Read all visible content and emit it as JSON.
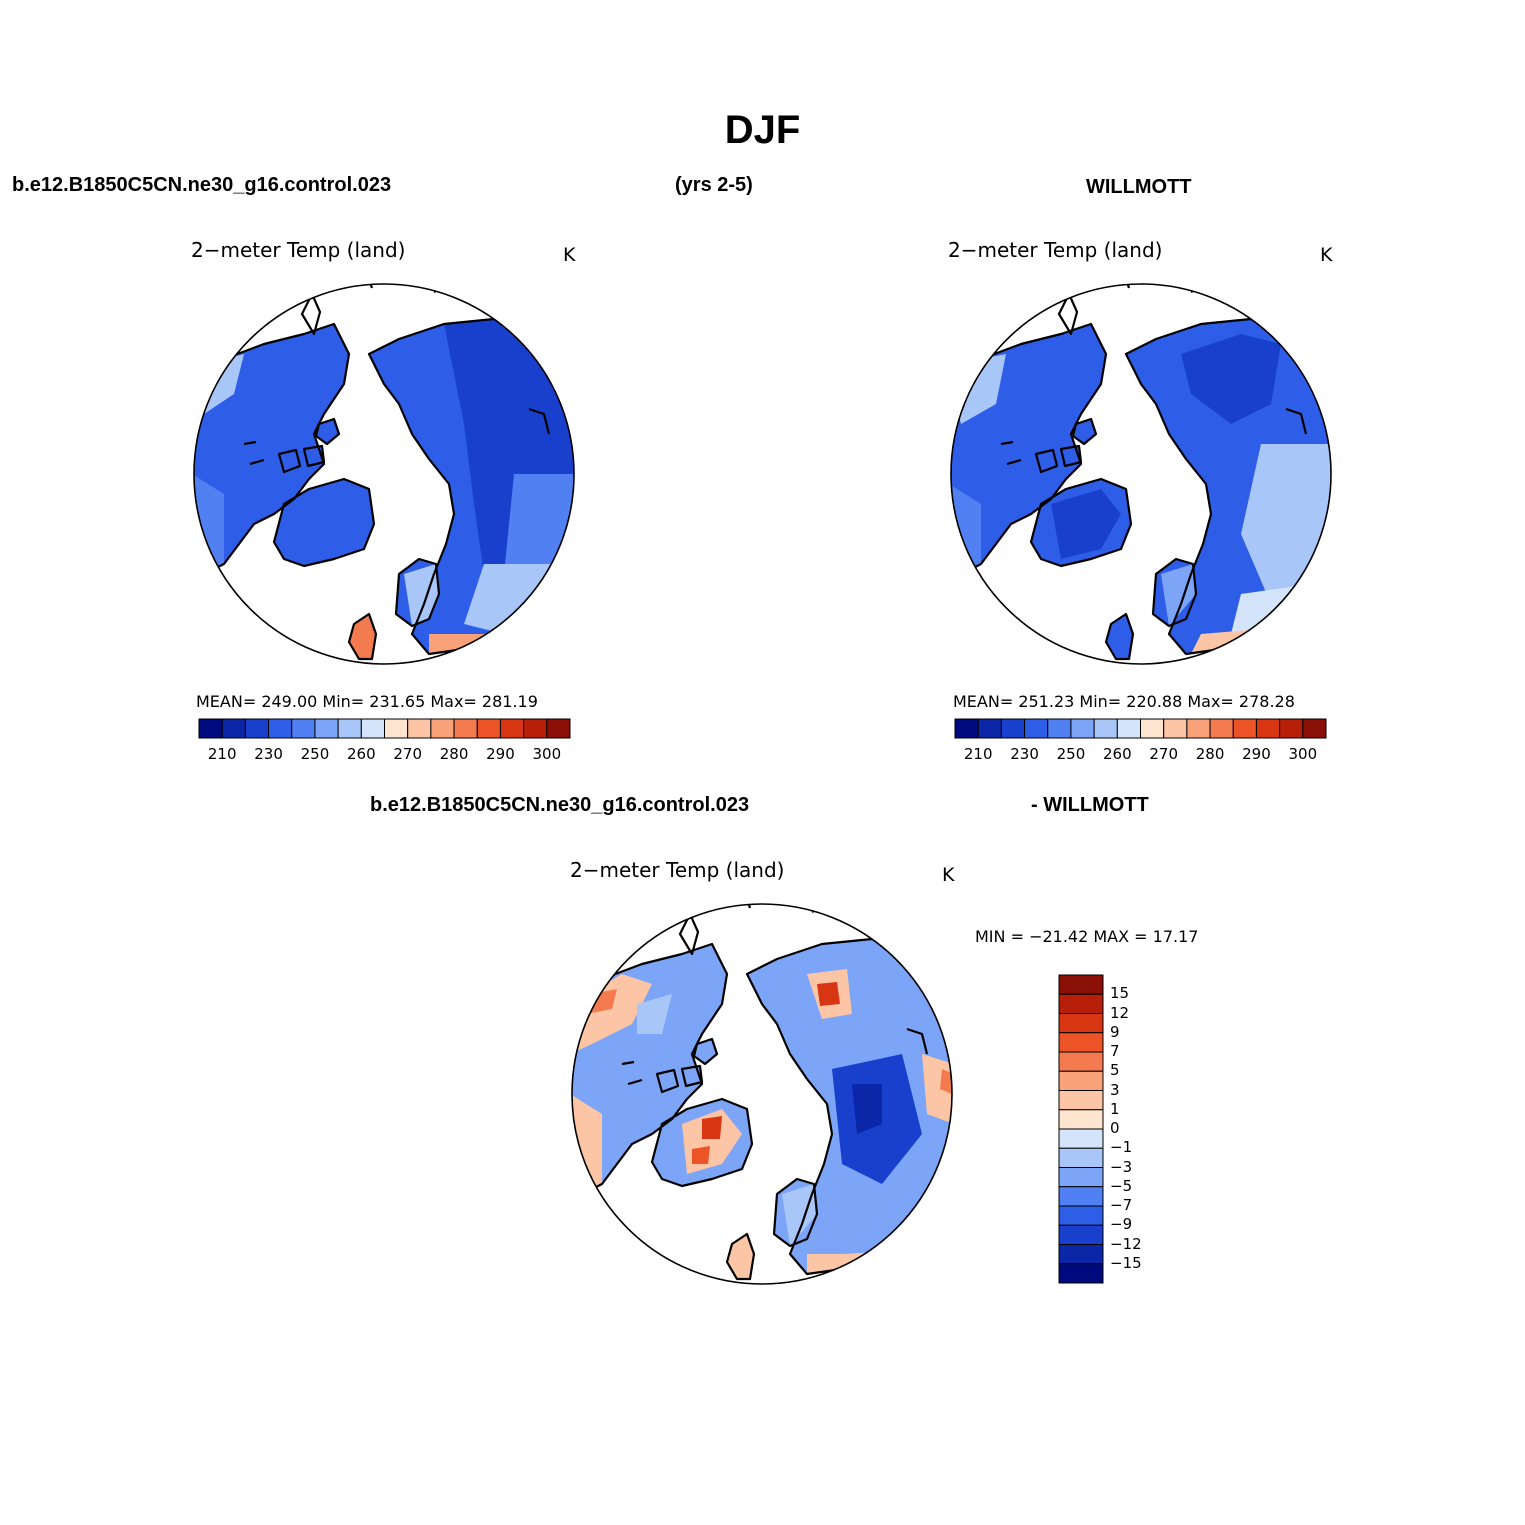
{
  "figure": {
    "title": "DJF",
    "case_name": "b.e12.B1850C5CN.ne30_g16.control.023",
    "years": "(yrs 2-5)",
    "obs_name": "WILLMOTT",
    "diff_case_name": "b.e12.B1850C5CN.ne30_g16.control.023",
    "diff_obs_name": "- WILLMOTT"
  },
  "panels": {
    "model": {
      "title": "2−meter Temp (land)",
      "units": "K",
      "stats": "MEAN= 249.00   Min= 231.65   Max= 281.19"
    },
    "obs": {
      "title": "2−meter Temp (land)",
      "units": "K",
      "stats": "MEAN= 251.23   Min= 220.88   Max= 278.28"
    },
    "diff": {
      "title": "2−meter Temp (land)",
      "units": "K",
      "stats": "MIN = −21.42  MAX =   17.17"
    }
  },
  "colorbar_abs": {
    "colors": [
      "#000a7f",
      "#0c26a8",
      "#1840cc",
      "#2e5ee8",
      "#5080f2",
      "#7ca4f7",
      "#a9c6f9",
      "#d4e5fb",
      "#fde4cf",
      "#fcc6a6",
      "#f9a27a",
      "#f47a50",
      "#ec5326",
      "#d83512",
      "#b81f0a",
      "#8a0f06"
    ],
    "labels": [
      "210",
      "230",
      "250",
      "260",
      "270",
      "280",
      "290",
      "300"
    ]
  },
  "colorbar_diff": {
    "colors": [
      "#8a0f06",
      "#b81f0a",
      "#d83512",
      "#ec5326",
      "#f47a50",
      "#f9a27a",
      "#fcc6a6",
      "#fde4cf",
      "#d4e5fb",
      "#a9c6f9",
      "#7ca4f7",
      "#5080f2",
      "#2e5ee8",
      "#1840cc",
      "#0c26a8",
      "#000a7f"
    ],
    "labels": [
      "15",
      "12",
      "9",
      "7",
      "5",
      "3",
      "1",
      "0",
      "−1",
      "−3",
      "−5",
      "−7",
      "−9",
      "−12",
      "−15"
    ]
  },
  "chart_data": [
    {
      "type": "heatmap",
      "title": "2−meter Temp (land)",
      "units": "K",
      "projection": "north polar stereographic",
      "source": "b.e12.B1850C5CN.ne30_g16.control.023",
      "mean": 249.0,
      "min": 231.65,
      "max": 281.19,
      "contour_levels": [
        210,
        220,
        230,
        240,
        250,
        255,
        260,
        265,
        270,
        275,
        280,
        285,
        290,
        295,
        300
      ]
    },
    {
      "type": "heatmap",
      "title": "2−meter Temp (land)",
      "units": "K",
      "projection": "north polar stereographic",
      "source": "WILLMOTT",
      "mean": 251.23,
      "min": 220.88,
      "max": 278.28,
      "contour_levels": [
        210,
        220,
        230,
        240,
        250,
        255,
        260,
        265,
        270,
        275,
        280,
        285,
        290,
        295,
        300
      ]
    },
    {
      "type": "heatmap",
      "title": "2−meter Temp (land)",
      "units": "K",
      "projection": "north polar stereographic",
      "source": "b.e12.B1850C5CN.ne30_g16.control.023 - WILLMOTT",
      "min": -21.42,
      "max": 17.17,
      "contour_levels": [
        -15,
        -12,
        -9,
        -7,
        -5,
        -3,
        -1,
        0,
        1,
        3,
        5,
        7,
        9,
        12,
        15
      ]
    }
  ]
}
